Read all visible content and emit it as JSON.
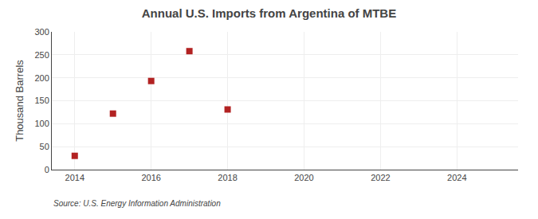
{
  "chart_data": {
    "type": "scatter",
    "title": "Annual U.S. Imports from Argentina of MTBE",
    "ylabel": "Thousand Barrels",
    "source": "Source: U.S. Energy Information Administration",
    "x": [
      2014,
      2015,
      2016,
      2017,
      2018
    ],
    "values": [
      30,
      122,
      193,
      258,
      131
    ],
    "color": "#b22222",
    "marker": "square",
    "xlim": [
      2013.4,
      2025.6
    ],
    "ylim": [
      0,
      300
    ],
    "xticks": [
      2014,
      2016,
      2018,
      2020,
      2022,
      2024
    ],
    "yticks": [
      0,
      50,
      100,
      150,
      200,
      250,
      300
    ],
    "grid": true
  }
}
